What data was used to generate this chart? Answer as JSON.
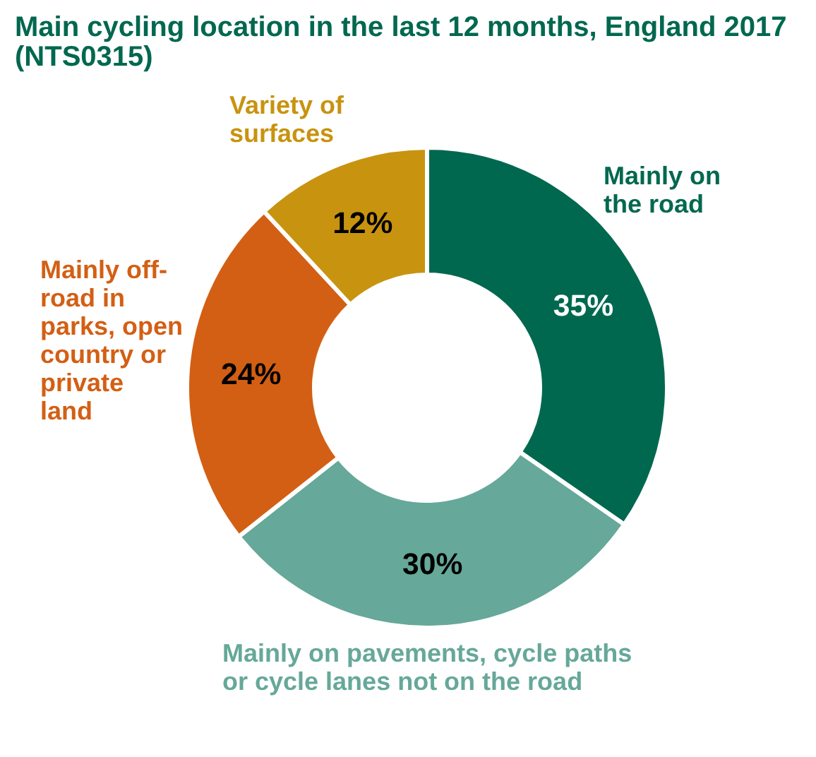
{
  "chart_data": {
    "type": "donut",
    "title": "Main cycling location in the last 12 months, England 2017 (NTS0315)",
    "categories": [
      "Mainly on the road",
      "Mainly on pavements, cycle paths or cycle lanes not on the road",
      "Mainly off-road in parks, open country or private land",
      "Variety of surfaces"
    ],
    "values": [
      35,
      30,
      24,
      12
    ],
    "colors": [
      "#00684f",
      "#66a899",
      "#d35f14",
      "#c8930f"
    ],
    "value_labels": [
      "35%",
      "30%",
      "24%",
      "12%"
    ]
  }
}
